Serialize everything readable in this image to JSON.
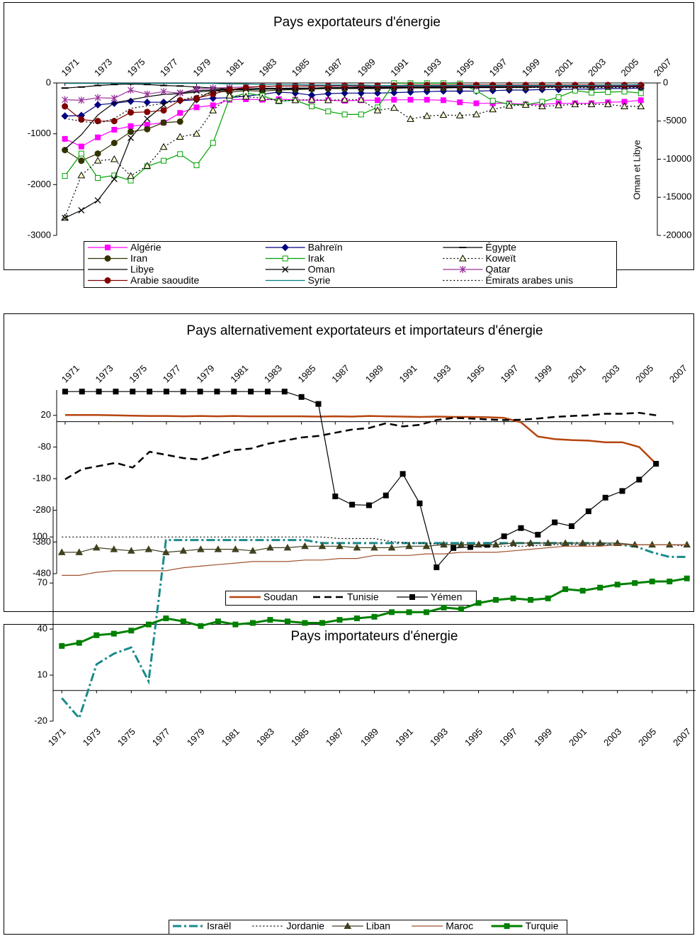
{
  "chart_data": [
    {
      "type": "line",
      "title": "Pays exportateurs d'énergie",
      "y2label": "Oman et Libye",
      "x": [
        1971,
        1972,
        1973,
        1974,
        1975,
        1976,
        1977,
        1978,
        1979,
        1980,
        1981,
        1982,
        1983,
        1984,
        1985,
        1986,
        1987,
        1988,
        1989,
        1990,
        1991,
        1992,
        1993,
        1994,
        1995,
        1996,
        1997,
        1998,
        1999,
        2000,
        2001,
        2002,
        2003,
        2004,
        2005,
        2006
      ],
      "xlim": [
        1970.5,
        2007
      ],
      "xticks": [
        1971,
        1973,
        1975,
        1977,
        1979,
        1981,
        1983,
        1985,
        1987,
        1989,
        1991,
        1993,
        1995,
        1997,
        1999,
        2001,
        2003,
        2005,
        2007
      ],
      "ylim": [
        -3000,
        0
      ],
      "yticks": [
        -3000,
        -2000,
        -1000,
        0
      ],
      "y2lim": [
        -20000,
        0
      ],
      "y2ticks": [
        -20000,
        -15000,
        -10000,
        -5000,
        0
      ],
      "legend": "bottom",
      "series": [
        {
          "name": "Algérie",
          "color": "#ff00ff",
          "marker": "square",
          "values": [
            -1100,
            -1250,
            -1070,
            -920,
            -850,
            -820,
            -780,
            -590,
            -480,
            -440,
            -330,
            -320,
            -330,
            -320,
            -330,
            -340,
            -340,
            -350,
            -340,
            -340,
            -330,
            -330,
            -330,
            -340,
            -380,
            -400,
            -400,
            -400,
            -420,
            -420,
            -400,
            -400,
            -400,
            -380,
            -370,
            -340
          ]
        },
        {
          "name": "Bahreïn",
          "color": "#000080",
          "marker": "diamond",
          "values": [
            -650,
            -640,
            -430,
            -400,
            -360,
            -380,
            -380,
            -350,
            -330,
            -300,
            -290,
            -260,
            -220,
            -180,
            -200,
            -240,
            -210,
            -200,
            -200,
            -200,
            -190,
            -180,
            -170,
            -160,
            -160,
            -160,
            -150,
            -140,
            -140,
            -130,
            -130,
            -120,
            -120,
            -110,
            -110,
            -100
          ]
        },
        {
          "name": "Égypte",
          "color": "#000000",
          "marker": "dash",
          "values": [
            -100,
            -80,
            -50,
            -30,
            -20,
            -30,
            -50,
            -60,
            -80,
            -100,
            -120,
            -120,
            -120,
            -110,
            -100,
            -100,
            -90,
            -90,
            -80,
            -80,
            -80,
            -70,
            -70,
            -70,
            -70,
            -70,
            -60,
            -60,
            -60,
            -60,
            -60,
            -60,
            -50,
            -50,
            -50,
            -40
          ]
        },
        {
          "name": "Iran",
          "color": "#333300",
          "marker": "circle",
          "values": [
            -1320,
            -1530,
            -1390,
            -1180,
            -960,
            -910,
            -780,
            -760,
            -320,
            -150,
            -180,
            -150,
            -160,
            -140,
            -130,
            -120,
            -110,
            -110,
            -110,
            -110,
            -100,
            -100,
            -100,
            -100,
            -90,
            -90,
            -90,
            -90,
            -90,
            -80,
            -80,
            -80,
            -80,
            -70,
            -70,
            -70
          ]
        },
        {
          "name": "Irak",
          "color": "#00a000",
          "marker": "square",
          "marker_fill": "#ffffff",
          "values": [
            -1830,
            -1390,
            -1870,
            -1820,
            -1920,
            -1640,
            -1530,
            -1400,
            -1620,
            -1180,
            -300,
            -200,
            -250,
            -360,
            -340,
            -460,
            -560,
            -620,
            -620,
            -480,
            -5,
            -5,
            -5,
            -5,
            -10,
            -150,
            -350,
            -420,
            -430,
            -370,
            -280,
            -150,
            -190,
            -180,
            -170,
            -200
          ]
        },
        {
          "name": "Koweït",
          "color": "#000000",
          "marker": "triangle",
          "marker_fill": "#ffffcc",
          "dash": "dotted",
          "values": [
            -2650,
            -1820,
            -1530,
            -1500,
            -1830,
            -1630,
            -1260,
            -1060,
            -1000,
            -540,
            -250,
            -270,
            -300,
            -350,
            -340,
            -330,
            -340,
            -330,
            -330,
            -540,
            -490,
            -710,
            -650,
            -630,
            -640,
            -620,
            -520,
            -450,
            -430,
            -460,
            -440,
            -420,
            -420,
            -420,
            -460,
            -460
          ]
        },
        {
          "name": "Libye",
          "color": "#000000",
          "axis": "y2",
          "values": [
            -8700,
            -6800,
            -4200,
            -2600,
            -2200,
            -1800,
            -1500,
            -1400,
            -1200,
            -1000,
            -900,
            -900,
            -800,
            -800,
            -800,
            -700,
            -700,
            -700,
            -700,
            -700,
            -700,
            -600,
            -600,
            -600,
            -600,
            -600,
            -600,
            -500,
            -500,
            -500,
            -500,
            -500,
            -500,
            -500,
            -500,
            -500
          ]
        },
        {
          "name": "Oman",
          "color": "#000000",
          "marker": "x",
          "axis": "y2",
          "values": [
            -17700,
            -16700,
            -15400,
            -12600,
            -7200,
            -4700,
            -2900,
            -1300,
            -1000,
            -900,
            -800,
            -800,
            -700,
            -700,
            -700,
            -700,
            -600,
            -600,
            -600,
            -600,
            -600,
            -600,
            -600,
            -500,
            -500,
            -500,
            -500,
            -500,
            -500,
            -500,
            -500,
            -500,
            -500,
            -500,
            -500,
            -500
          ]
        },
        {
          "name": "Qatar",
          "color": "#993399",
          "marker": "star",
          "values": [
            -330,
            -340,
            -290,
            -300,
            -140,
            -220,
            -170,
            -200,
            -120,
            -100,
            -90,
            -80,
            -70,
            -60,
            -60,
            -60,
            -60,
            -60,
            -60,
            -60,
            -60,
            -60,
            -60,
            -60,
            -60,
            -60,
            -60,
            -60,
            -60,
            -60,
            -60,
            -60,
            -60,
            -60,
            -60,
            -50
          ]
        },
        {
          "name": "Arabie saoudite",
          "color": "#800000",
          "marker": "circle",
          "values": [
            -460,
            -720,
            -750,
            -750,
            -580,
            -570,
            -540,
            -340,
            -300,
            -220,
            -130,
            -90,
            -70,
            -60,
            -60,
            -60,
            -60,
            -50,
            -50,
            -50,
            -50,
            -40,
            -40,
            -40,
            -40,
            -40,
            -40,
            -40,
            -40,
            -40,
            -40,
            -40,
            -40,
            -40,
            -40,
            -40
          ]
        },
        {
          "name": "Syrie",
          "color": "#008080",
          "values": [
            -10,
            -10,
            -10,
            -10,
            -10,
            -10,
            -10,
            -10,
            -10,
            -10,
            -20,
            -20,
            -30,
            -30,
            -30,
            -40,
            -40,
            -40,
            -40,
            -50,
            -50,
            -50,
            -50,
            -50,
            -50,
            -50,
            -50,
            -50,
            -50,
            -50,
            -50,
            -50,
            -50,
            -40,
            -40,
            -30
          ]
        },
        {
          "name": "Émirats arabes unis",
          "color": "#000000",
          "dash": "dotted",
          "values": [
            -700,
            -750,
            -800,
            -700,
            -500,
            -450,
            -400,
            -350,
            -250,
            -200,
            -150,
            -120,
            -110,
            -100,
            -100,
            -100,
            -100,
            -100,
            -100,
            -100,
            -100,
            -90,
            -90,
            -90,
            -90,
            -90,
            -90,
            -90,
            -90,
            -90,
            -90,
            -90,
            -90,
            -90,
            -90,
            -90
          ]
        }
      ]
    },
    {
      "type": "line",
      "title": "Pays alternativement exportateurs et importateurs d'énergie",
      "x": [
        1971,
        1972,
        1973,
        1974,
        1975,
        1976,
        1977,
        1978,
        1979,
        1980,
        1981,
        1982,
        1983,
        1984,
        1985,
        1986,
        1987,
        1988,
        1989,
        1990,
        1991,
        1992,
        1993,
        1994,
        1995,
        1996,
        1997,
        1998,
        1999,
        2000,
        2001,
        2002,
        2003,
        2004,
        2005,
        2006
      ],
      "xlim": [
        1970.5,
        2007
      ],
      "xticks": [
        1971,
        1973,
        1975,
        1977,
        1979,
        1981,
        1983,
        1985,
        1987,
        1989,
        1991,
        1993,
        1995,
        1997,
        1999,
        2001,
        2003,
        2005,
        2007
      ],
      "ylim": [
        -480,
        100
      ],
      "yticks": [
        -480,
        -380,
        -280,
        -180,
        -80,
        20
      ],
      "legend": "bottom",
      "series": [
        {
          "name": "Soudan",
          "color": "#b5450f",
          "line_width": 2.5,
          "values": [
            21,
            21,
            21,
            20,
            19,
            18,
            18,
            17,
            18,
            17,
            18,
            17,
            17,
            17,
            17,
            16,
            17,
            16,
            18,
            17,
            16,
            15,
            16,
            15,
            15,
            14,
            12,
            -2,
            -47,
            -55,
            -58,
            -60,
            -65,
            -65,
            -80,
            -133
          ]
        },
        {
          "name": "Tunisie",
          "color": "#000000",
          "line_width": 2.5,
          "dash": "dashed",
          "values": [
            -182,
            -150,
            -140,
            -130,
            -145,
            -95,
            -105,
            -115,
            -120,
            -105,
            -90,
            -85,
            -70,
            -60,
            -50,
            -45,
            -35,
            -25,
            -20,
            -5,
            -15,
            -10,
            5,
            12,
            10,
            7,
            5,
            6,
            10,
            15,
            18,
            20,
            25,
            25,
            28,
            20
          ]
        },
        {
          "name": "Yémen",
          "color": "#000000",
          "marker": "square",
          "values": [
            95,
            95,
            95,
            95,
            95,
            95,
            95,
            95,
            95,
            95,
            95,
            95,
            95,
            95,
            78,
            56,
            -236,
            -262,
            -264,
            -233,
            -165,
            -258,
            -460,
            -399,
            -396,
            -389,
            -362,
            -336,
            -357,
            -318,
            -330,
            -283,
            -240,
            -219,
            -183,
            -133
          ]
        }
      ]
    },
    {
      "type": "line",
      "title": "Pays importateurs d'énergie",
      "x": [
        1971,
        1972,
        1973,
        1974,
        1975,
        1976,
        1977,
        1978,
        1979,
        1980,
        1981,
        1982,
        1983,
        1984,
        1985,
        1986,
        1987,
        1988,
        1989,
        1990,
        1991,
        1992,
        1993,
        1994,
        1995,
        1996,
        1997,
        1998,
        1999,
        2000,
        2001,
        2002,
        2003,
        2004,
        2005,
        2006,
        2007
      ],
      "xlim": [
        1970.5,
        2007.5
      ],
      "xticks": [
        1971,
        1973,
        1975,
        1977,
        1979,
        1981,
        1983,
        1985,
        1987,
        1989,
        1991,
        1993,
        1995,
        1997,
        1999,
        2001,
        2003,
        2005,
        2007
      ],
      "ylim": [
        -20,
        120
      ],
      "yticks": [
        -20,
        10,
        40,
        70,
        100
      ],
      "legend": "bottom",
      "series": [
        {
          "name": "Israël",
          "color": "#1a8a8a",
          "line_width": 3,
          "dash": "dashdot",
          "values": [
            -5,
            -18,
            17,
            24,
            28,
            6,
            98,
            98,
            98,
            98,
            98,
            98,
            98,
            98,
            98,
            96,
            96,
            96,
            96,
            96,
            96,
            96,
            96,
            96,
            96,
            96,
            96,
            96,
            96,
            96,
            96,
            96,
            95,
            94,
            90,
            87,
            87
          ]
        },
        {
          "name": "Jordanie",
          "color": "#000000",
          "dash": "dotted",
          "values": [
            100,
            100,
            100,
            100,
            100,
            100,
            100,
            100,
            100,
            100,
            100,
            100,
            100,
            100,
            100,
            100,
            99,
            99,
            99,
            97,
            96,
            96,
            95,
            95,
            94,
            94,
            94,
            94,
            95,
            95,
            95,
            95,
            95,
            95,
            95,
            95,
            94
          ]
        },
        {
          "name": "Liban",
          "color": "#404020",
          "marker": "triangle",
          "values": [
            90,
            90,
            93,
            92,
            91,
            92,
            90,
            91,
            92,
            92,
            92,
            91,
            93,
            93,
            94,
            94,
            94,
            93,
            93,
            93,
            94,
            94,
            95,
            95,
            95,
            95,
            96,
            96,
            96,
            96,
            96,
            96,
            96,
            95,
            95,
            95,
            95
          ]
        },
        {
          "name": "Maroc",
          "color": "#a0522d",
          "values": [
            75,
            75,
            77,
            78,
            78,
            78,
            78,
            80,
            81,
            82,
            83,
            84,
            84,
            84,
            85,
            85,
            86,
            86,
            88,
            88,
            88,
            89,
            89,
            90,
            90,
            90,
            91,
            92,
            93,
            94,
            94,
            94,
            95,
            95,
            95,
            95,
            95
          ]
        },
        {
          "name": "Turquie",
          "color": "#008000",
          "line_width": 3,
          "marker": "square",
          "values": [
            29,
            31,
            36,
            37,
            39,
            43,
            47,
            45,
            42,
            45,
            43,
            44,
            46,
            45,
            44,
            44,
            46,
            47,
            48,
            51,
            51,
            51,
            54,
            53,
            57,
            59,
            60,
            59,
            60,
            66,
            65,
            67,
            69,
            70,
            71,
            71,
            73
          ]
        }
      ]
    }
  ]
}
